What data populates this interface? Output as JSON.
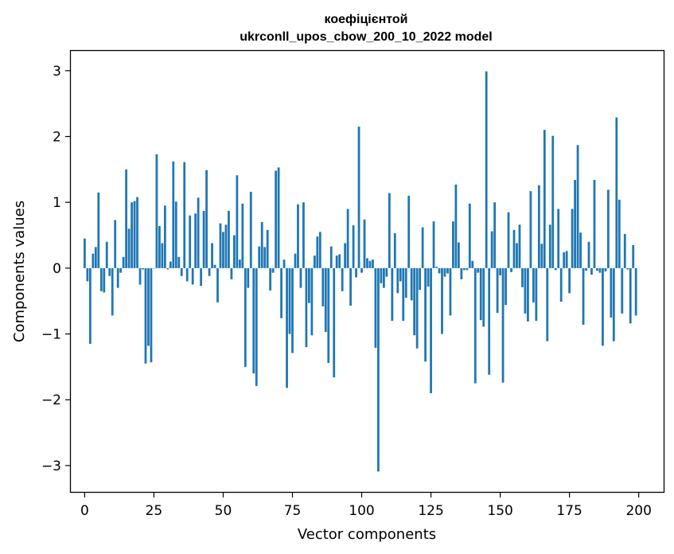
{
  "chart_data": {
    "type": "bar",
    "title": "коефіцієнтой",
    "subtitle": "ukrconll_upos_cbow_200_10_2022 model",
    "xlabel": "Vector components",
    "ylabel": "Components values",
    "xlim": [
      -5,
      209
    ],
    "ylim": [
      -3.4,
      3.3
    ],
    "xticks": [
      0,
      25,
      50,
      75,
      100,
      125,
      150,
      175,
      200
    ],
    "xtick_labels": [
      "0",
      "25",
      "50",
      "75",
      "100",
      "125",
      "150",
      "175",
      "200"
    ],
    "yticks": [
      3,
      2,
      1,
      0,
      -1,
      -2,
      -3
    ],
    "ytick_labels": [
      "3",
      "2",
      "1",
      "0",
      "−1",
      "−2",
      "−3"
    ],
    "grid": false,
    "bar_color": "#1f77b4",
    "x": [
      0,
      1,
      2,
      3,
      4,
      5,
      6,
      7,
      8,
      9,
      10,
      11,
      12,
      13,
      14,
      15,
      16,
      17,
      18,
      19,
      20,
      21,
      22,
      23,
      24,
      25,
      26,
      27,
      28,
      29,
      30,
      31,
      32,
      33,
      34,
      35,
      36,
      37,
      38,
      39,
      40,
      41,
      42,
      43,
      44,
      45,
      46,
      47,
      48,
      49,
      50,
      51,
      52,
      53,
      54,
      55,
      56,
      57,
      58,
      59,
      60,
      61,
      62,
      63,
      64,
      65,
      66,
      67,
      68,
      69,
      70,
      71,
      72,
      73,
      74,
      75,
      76,
      77,
      78,
      79,
      80,
      81,
      82,
      83,
      84,
      85,
      86,
      87,
      88,
      89,
      90,
      91,
      92,
      93,
      94,
      95,
      96,
      97,
      98,
      99,
      100,
      101,
      102,
      103,
      104,
      105,
      106,
      107,
      108,
      109,
      110,
      111,
      112,
      113,
      114,
      115,
      116,
      117,
      118,
      119,
      120,
      121,
      122,
      123,
      124,
      125,
      126,
      127,
      128,
      129,
      130,
      131,
      132,
      133,
      134,
      135,
      136,
      137,
      138,
      139,
      140,
      141,
      142,
      143,
      144,
      145,
      146,
      147,
      148,
      149,
      150,
      151,
      152,
      153,
      154,
      155,
      156,
      157,
      158,
      159,
      160,
      161,
      162,
      163,
      164,
      165,
      166,
      167,
      168,
      169,
      170,
      171,
      172,
      173,
      174,
      175,
      176,
      177,
      178,
      179,
      180,
      181,
      182,
      183,
      184,
      185,
      186,
      187,
      188,
      189,
      190,
      191,
      192,
      193,
      194,
      195,
      196,
      197,
      198,
      199
    ],
    "values": [
      0.45,
      -0.2,
      -1.15,
      0.22,
      0.32,
      1.15,
      -0.35,
      -0.37,
      0.4,
      -0.12,
      -0.72,
      0.73,
      -0.3,
      -0.07,
      0.17,
      1.5,
      0.6,
      1.0,
      1.02,
      1.08,
      -0.25,
      -0.02,
      -1.45,
      -1.18,
      -1.43,
      0.0,
      1.73,
      0.64,
      0.38,
      0.95,
      -0.02,
      0.1,
      1.62,
      1.01,
      0.17,
      -0.12,
      1.61,
      -0.2,
      0.8,
      -0.25,
      0.83,
      1.07,
      -0.27,
      0.87,
      1.49,
      -0.12,
      0.38,
      0.05,
      -0.52,
      0.68,
      0.55,
      0.66,
      0.87,
      -0.17,
      0.5,
      1.41,
      0.13,
      0.98,
      -1.5,
      -0.3,
      1.16,
      -1.6,
      -1.79,
      0.33,
      0.7,
      0.32,
      0.58,
      -0.34,
      -0.07,
      1.48,
      1.53,
      -0.76,
      0.13,
      -1.82,
      -1.0,
      -1.29,
      0.22,
      0.97,
      -0.3,
      1.0,
      -1.2,
      -0.53,
      -1.02,
      0.19,
      0.48,
      0.55,
      -0.58,
      -0.97,
      -1.44,
      0.33,
      -1.66,
      0.19,
      0.21,
      -0.35,
      0.38,
      0.9,
      -0.57,
      0.65,
      -0.14,
      2.15,
      -0.07,
      0.74,
      0.15,
      0.11,
      0.13,
      -1.21,
      -3.09,
      -0.23,
      -0.3,
      -0.13,
      1.14,
      -0.8,
      0.53,
      -0.38,
      -0.2,
      -0.8,
      -0.45,
      1.1,
      -0.49,
      -1.02,
      -1.22,
      -0.33,
      0.62,
      -1.42,
      -0.28,
      -1.9,
      0.71,
      0.02,
      -0.08,
      -1.0,
      -0.13,
      -0.08,
      -0.72,
      0.71,
      1.27,
      0.39,
      -0.17,
      -0.03,
      -0.03,
      0.98,
      0.11,
      -1.75,
      -0.07,
      -0.79,
      -0.89,
      2.99,
      -1.62,
      0.56,
      1.0,
      -0.68,
      -0.11,
      -1.74,
      -0.56,
      0.85,
      -0.06,
      0.58,
      0.38,
      0.66,
      -0.29,
      -0.69,
      -0.81,
      1.17,
      -0.52,
      -0.8,
      1.26,
      0.37,
      2.1,
      -1.11,
      0.66,
      2.01,
      -0.03,
      0.9,
      -0.51,
      0.24,
      0.26,
      -0.38,
      0.9,
      1.34,
      1.87,
      0.54,
      -0.86,
      -0.04,
      0.4,
      -0.1,
      1.34,
      -0.04,
      -0.07,
      -1.18,
      -0.05,
      1.19,
      -0.75,
      -1.11,
      2.29,
      1.04,
      -0.69,
      0.52,
      -0.02,
      -0.84,
      0.35,
      -0.72
    ]
  }
}
